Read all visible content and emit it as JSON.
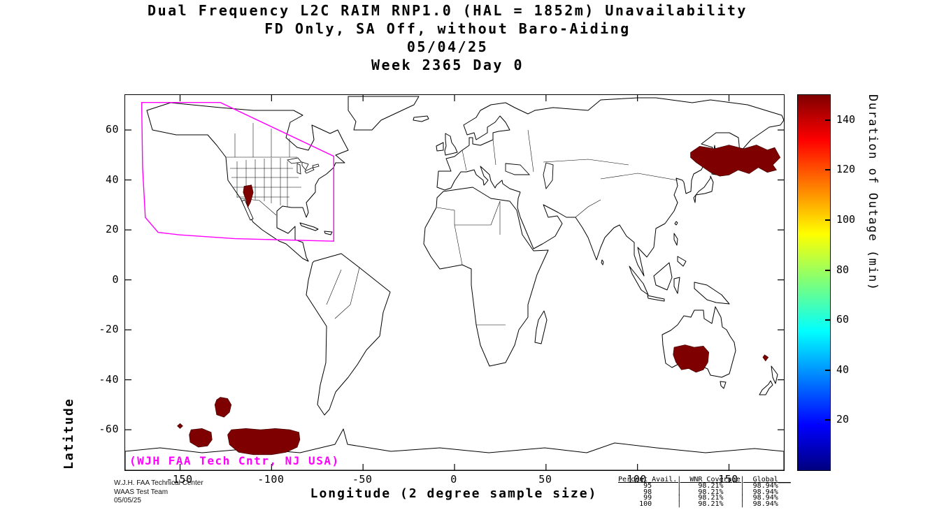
{
  "chart_data": {
    "type": "heatmap",
    "subtype": "world-map-outage-plot",
    "title": [
      "Dual Frequency L2C RAIM RNP1.0 (HAL = 1852m) Unavailability",
      "FD Only, SA Off, without Baro-Aiding",
      "05/04/25",
      "Week 2365 Day 0"
    ],
    "xlabel": "Longitude (2 degree sample size)",
    "ylabel": "Latitude",
    "xticks": [
      -150,
      -100,
      -50,
      0,
      50,
      100,
      150
    ],
    "yticks": [
      60,
      40,
      20,
      0,
      -20,
      -40,
      -60
    ],
    "xlim": [
      -180,
      180
    ],
    "ylim": [
      -76.2,
      74
    ],
    "grid": false,
    "colorbar": {
      "label": "Duration of Outage (min)",
      "ticks": [
        20,
        40,
        60,
        80,
        100,
        120,
        140
      ],
      "lim": [
        0,
        150
      ],
      "gradient": [
        "#00007f 0%",
        "#0000ff 12%",
        "#00ffff 37%",
        "#7dff7a 50%",
        "#ffff00 63%",
        "#ff0000 88%",
        "#7f0000 100%"
      ]
    },
    "outage_color": "#7f0000",
    "outage_regions_lonlat": [
      {
        "name": "northwest-pacific",
        "points": [
          [
            129,
            51
          ],
          [
            134,
            53.5
          ],
          [
            142,
            52.5
          ],
          [
            150,
            54
          ],
          [
            158,
            52.5
          ],
          [
            165,
            54
          ],
          [
            171,
            52
          ],
          [
            175,
            53
          ],
          [
            178,
            49
          ],
          [
            174,
            46
          ],
          [
            176,
            44
          ],
          [
            171,
            43
          ],
          [
            166,
            45
          ],
          [
            161,
            42.5
          ],
          [
            155,
            44
          ],
          [
            150,
            42
          ],
          [
            145,
            41.5
          ],
          [
            140,
            43
          ],
          [
            136,
            45
          ],
          [
            132,
            47
          ],
          [
            129,
            49
          ]
        ]
      },
      {
        "name": "south-australia",
        "points": [
          [
            120,
            -27
          ],
          [
            126,
            -26
          ],
          [
            131,
            -27
          ],
          [
            136,
            -26.5
          ],
          [
            139,
            -29
          ],
          [
            138.5,
            -33
          ],
          [
            136,
            -36
          ],
          [
            132,
            -37
          ],
          [
            128,
            -35.5
          ],
          [
            124,
            -36
          ],
          [
            121,
            -33
          ],
          [
            119.5,
            -30
          ]
        ]
      },
      {
        "name": "tasman-spot",
        "points": [
          [
            169.5,
            -30
          ],
          [
            171.5,
            -31
          ],
          [
            170,
            -32.5
          ],
          [
            168.5,
            -31
          ]
        ]
      },
      {
        "name": "arizona-mexico",
        "points": [
          [
            -115,
            37.5
          ],
          [
            -111,
            38
          ],
          [
            -110,
            35
          ],
          [
            -111.5,
            31
          ],
          [
            -113,
            29
          ],
          [
            -114,
            32
          ],
          [
            -115.5,
            35
          ]
        ]
      },
      {
        "name": "south-pacific-diamond",
        "points": [
          [
            -150,
            -57.5
          ],
          [
            -148.5,
            -58.5
          ],
          [
            -150,
            -59.5
          ],
          [
            -151.5,
            -58.5
          ]
        ]
      },
      {
        "name": "south-pacific-west",
        "points": [
          [
            -144,
            -60
          ],
          [
            -138,
            -59.5
          ],
          [
            -133,
            -61
          ],
          [
            -132.5,
            -64
          ],
          [
            -135,
            -66.5
          ],
          [
            -140,
            -67
          ],
          [
            -144.5,
            -65
          ],
          [
            -145,
            -62
          ]
        ]
      },
      {
        "name": "south-pacific-large",
        "points": [
          [
            -122,
            -60
          ],
          [
            -114,
            -59.5
          ],
          [
            -106,
            -60
          ],
          [
            -98,
            -59.5
          ],
          [
            -90,
            -60
          ],
          [
            -85,
            -61
          ],
          [
            -84.5,
            -64
          ],
          [
            -86,
            -67
          ],
          [
            -92,
            -69
          ],
          [
            -100,
            -70
          ],
          [
            -110,
            -70
          ],
          [
            -118,
            -69
          ],
          [
            -123,
            -66
          ],
          [
            -124,
            -62
          ]
        ]
      },
      {
        "name": "south-pacific-north",
        "points": [
          [
            -128,
            -47
          ],
          [
            -124,
            -47.5
          ],
          [
            -122,
            -50
          ],
          [
            -123,
            -53
          ],
          [
            -126,
            -55
          ],
          [
            -130,
            -54
          ],
          [
            -131,
            -50
          ],
          [
            -130,
            -48
          ]
        ]
      }
    ],
    "waas_color": "#ff00ff",
    "waas_boundary_lonlat": [
      [
        -171,
        71
      ],
      [
        -128,
        71
      ],
      [
        -66,
        49.5
      ],
      [
        -66,
        15.5
      ],
      [
        -120,
        16.5
      ],
      [
        -150,
        18
      ],
      [
        -162,
        19
      ],
      [
        -169,
        25
      ],
      [
        -170.5,
        45
      ]
    ],
    "map_credit": "(WJH FAA Tech Cntr, NJ USA)",
    "credit_lines": [
      "W.J.H. FAA Technical Center",
      "WAAS Test Team",
      "05/05/25"
    ],
    "stats_table": {
      "header": "Percent Avail.|  WNR Coverage|  Global___",
      "rows": [
        "      95      |    98.21%    |  98.94%",
        "      98      |    98.21%    |  98.94%",
        "      99      |    98.21%    |  98.94%",
        "     100      |    98.21%    |  98.94%"
      ]
    }
  }
}
